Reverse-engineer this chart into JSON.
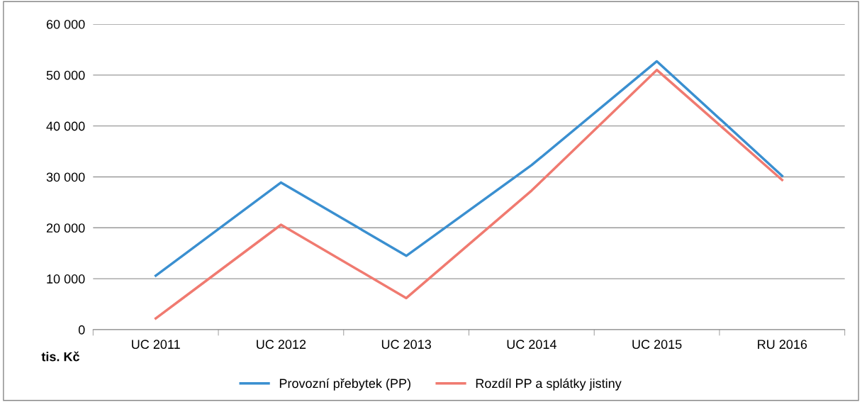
{
  "chart_data": {
    "type": "line",
    "ylabel": "tis. Kč",
    "categories": [
      "UC 2011",
      "UC 2012",
      "UC 2013",
      "UC 2014",
      "UC 2015",
      "RU 2016"
    ],
    "series": [
      {
        "name": "Provozní přebytek (PP)",
        "color": "#3a8fd0",
        "values": [
          10600,
          28900,
          14500,
          32300,
          52700,
          30200
        ]
      },
      {
        "name": "Rozdíl PP a splátky jistiny",
        "color": "#f07a70",
        "values": [
          2200,
          20600,
          6200,
          27300,
          51000,
          29400
        ]
      }
    ],
    "ylim": [
      0,
      60000
    ],
    "yticks": [
      0,
      {
        "value": 10000,
        "label": "10 000"
      },
      {
        "value": 20000,
        "label": "20 000"
      },
      {
        "value": 30000,
        "label": "30 000"
      },
      {
        "value": 40000,
        "label": "40 000"
      },
      {
        "value": 50000,
        "label": "50 000"
      },
      {
        "value": 60000,
        "label": "60 000"
      }
    ],
    "grid": "y",
    "legend": "bottom",
    "marker": "none",
    "line_style": "solid"
  }
}
